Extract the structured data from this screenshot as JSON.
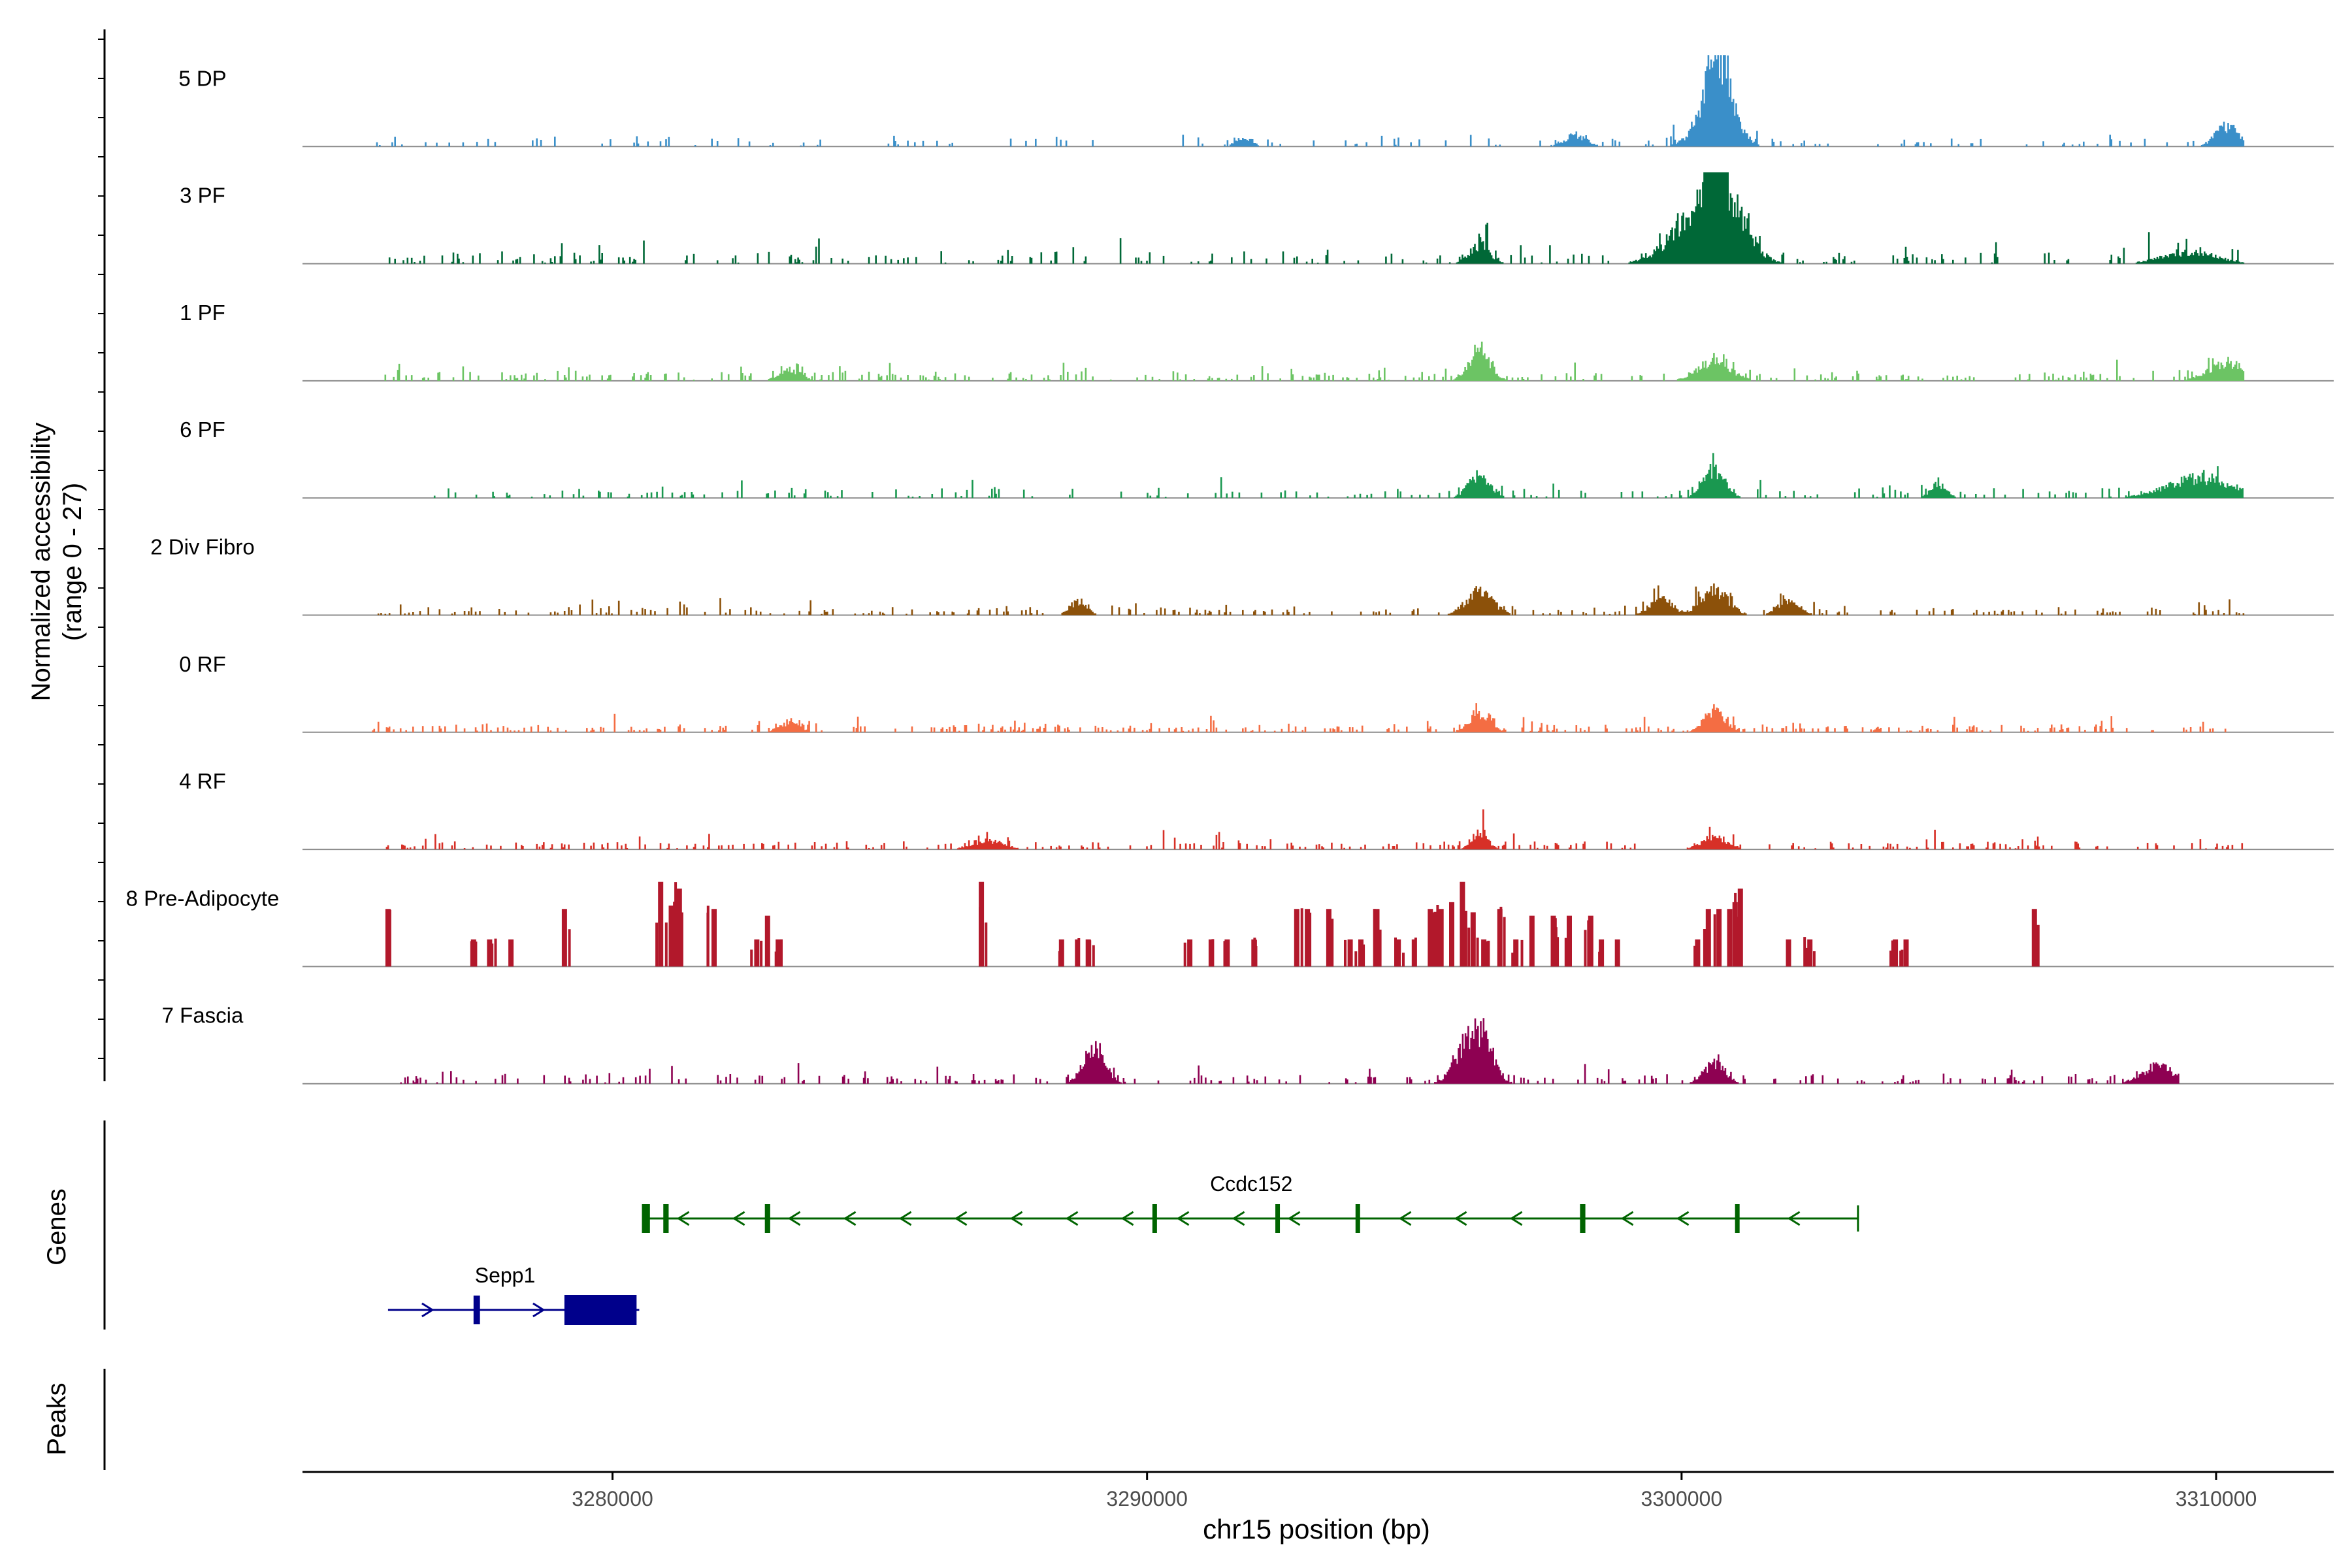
{
  "chart_data": {
    "type": "coverage-track",
    "y_axis_title_line1": "Normalized accessibility",
    "y_axis_title_line2": "(range 0 - 27)",
    "ylim": [
      0,
      27
    ],
    "xlabel": "chr15 position (bp)",
    "xlim": [
      3274200,
      3312200
    ],
    "x_ticks": [
      3280000,
      3290000,
      3300000,
      3310000
    ],
    "x_tick_labels": [
      "3280000",
      "3290000",
      "3300000",
      "3310000"
    ],
    "tracks": [
      {
        "label": "5 DP",
        "color": "#3a8fc9",
        "seed": 11,
        "density": 0.4,
        "base": 3.0,
        "start": 3275500,
        "end": 3310500,
        "peaks": [
          [
            3300700,
            21,
            220
          ],
          [
            3300600,
            14,
            320
          ],
          [
            3310200,
            7,
            220
          ],
          [
            3298000,
            4,
            200
          ],
          [
            3291800,
            3,
            150
          ]
        ]
      },
      {
        "label": "3 PF",
        "color": "#006837",
        "seed": 23,
        "density": 0.55,
        "base": 3.5,
        "start": 3275500,
        "end": 3310500,
        "peaks": [
          [
            3300600,
            27,
            160
          ],
          [
            3300300,
            16,
            500
          ],
          [
            3300900,
            14,
            350
          ],
          [
            3296200,
            6,
            200
          ],
          [
            3309500,
            4,
            500
          ]
        ]
      },
      {
        "label": "1 PF",
        "color": "#6cc464",
        "seed": 37,
        "density": 0.75,
        "base": 3.0,
        "start": 3275500,
        "end": 3310500,
        "peaks": [
          [
            3296200,
            11,
            200
          ],
          [
            3300600,
            7,
            300
          ],
          [
            3310200,
            6,
            350
          ],
          [
            3283300,
            4,
            200
          ]
        ]
      },
      {
        "label": "6 PF",
        "color": "#1a9850",
        "seed": 41,
        "density": 0.45,
        "base": 3.2,
        "start": 3276500,
        "end": 3310500,
        "peaks": [
          [
            3300600,
            10,
            200
          ],
          [
            3296200,
            8,
            200
          ],
          [
            3309700,
            7,
            600
          ],
          [
            3304800,
            5,
            150
          ]
        ]
      },
      {
        "label": "2 Div Fibro",
        "color": "#8c510a",
        "seed": 53,
        "density": 0.65,
        "base": 2.8,
        "start": 3275500,
        "end": 3310500,
        "peaks": [
          [
            3296200,
            8,
            250
          ],
          [
            3299600,
            6,
            200
          ],
          [
            3300600,
            9,
            250
          ],
          [
            3288700,
            5,
            150
          ],
          [
            3302000,
            5,
            200
          ]
        ]
      },
      {
        "label": "0 RF",
        "color": "#f46d43",
        "seed": 67,
        "density": 0.8,
        "base": 2.5,
        "start": 3275500,
        "end": 3310500,
        "peaks": [
          [
            3300600,
            7,
            200
          ],
          [
            3296200,
            6,
            200
          ],
          [
            3283300,
            3,
            200
          ]
        ]
      },
      {
        "label": "4 RF",
        "color": "#d73027",
        "seed": 71,
        "density": 0.75,
        "base": 2.6,
        "start": 3275500,
        "end": 3310500,
        "peaks": [
          [
            3296200,
            6,
            150
          ],
          [
            3300600,
            4,
            250
          ],
          [
            3287000,
            3,
            300
          ]
        ]
      },
      {
        "label": "8 Pre-Adipocyte",
        "color": "#b2182b",
        "seed": 83,
        "type": "spiky",
        "start": 3275500,
        "end": 3310500,
        "spikes": [
          [
            3275800,
            17
          ],
          [
            3277400,
            8
          ],
          [
            3277700,
            8
          ],
          [
            3278100,
            8
          ],
          [
            3279100,
            17
          ],
          [
            3280900,
            25
          ],
          [
            3281100,
            18
          ],
          [
            3281250,
            23
          ],
          [
            3281900,
            17
          ],
          [
            3282700,
            8
          ],
          [
            3282900,
            15
          ],
          [
            3283100,
            8
          ],
          [
            3286900,
            25
          ],
          [
            3288400,
            8
          ],
          [
            3288700,
            8
          ],
          [
            3288900,
            8
          ],
          [
            3290800,
            8
          ],
          [
            3291200,
            8
          ],
          [
            3291500,
            8
          ],
          [
            3292000,
            8
          ],
          [
            3292800,
            17
          ],
          [
            3293000,
            17
          ],
          [
            3293400,
            17
          ],
          [
            3293800,
            8
          ],
          [
            3294000,
            8
          ],
          [
            3294300,
            17
          ],
          [
            3294700,
            8
          ],
          [
            3295000,
            8
          ],
          [
            3295300,
            17
          ],
          [
            3295500,
            17
          ],
          [
            3295700,
            19
          ],
          [
            3295900,
            25
          ],
          [
            3296100,
            16
          ],
          [
            3296300,
            8
          ],
          [
            3296600,
            17
          ],
          [
            3296900,
            8
          ],
          [
            3297200,
            15
          ],
          [
            3297600,
            15
          ],
          [
            3297900,
            15
          ],
          [
            3298300,
            15
          ],
          [
            3298500,
            8
          ],
          [
            3298800,
            8
          ],
          [
            3300300,
            8
          ],
          [
            3300500,
            17
          ],
          [
            3300700,
            17
          ],
          [
            3300900,
            17
          ],
          [
            3301000,
            19
          ],
          [
            3301100,
            23
          ],
          [
            3302000,
            8
          ],
          [
            3302400,
            8
          ],
          [
            3304000,
            8
          ],
          [
            3304200,
            8
          ],
          [
            3306600,
            17
          ]
        ]
      },
      {
        "label": "7 Fascia",
        "color": "#8e0152",
        "seed": 97,
        "density": 0.6,
        "base": 3.0,
        "start": 3276000,
        "end": 3309300,
        "peaks": [
          [
            3289000,
            12,
            200
          ],
          [
            3296000,
            13,
            250
          ],
          [
            3296300,
            10,
            200
          ],
          [
            3300600,
            7,
            200
          ],
          [
            3308900,
            6,
            300
          ]
        ]
      }
    ],
    "genes_label": "Genes",
    "peaks_label": "Peaks",
    "genes": [
      {
        "name": "Ccdc152",
        "strand": "-",
        "color": "#006400",
        "start": 3280600,
        "end": 3303300,
        "exons": [
          [
            3280550,
            3280700
          ],
          [
            3280950,
            3281050
          ],
          [
            3282850,
            3282950
          ],
          [
            3290100,
            3290180
          ],
          [
            3292400,
            3292460
          ],
          [
            3293900,
            3293960
          ],
          [
            3298100,
            3298200
          ],
          [
            3301000,
            3301080
          ]
        ]
      },
      {
        "name": "Sepp1",
        "strand": "+",
        "color": "#00008b",
        "start": 3275800,
        "end": 3280500,
        "exons": [
          [
            3277400,
            3277520
          ],
          [
            3279100,
            3280450
          ]
        ]
      }
    ]
  }
}
